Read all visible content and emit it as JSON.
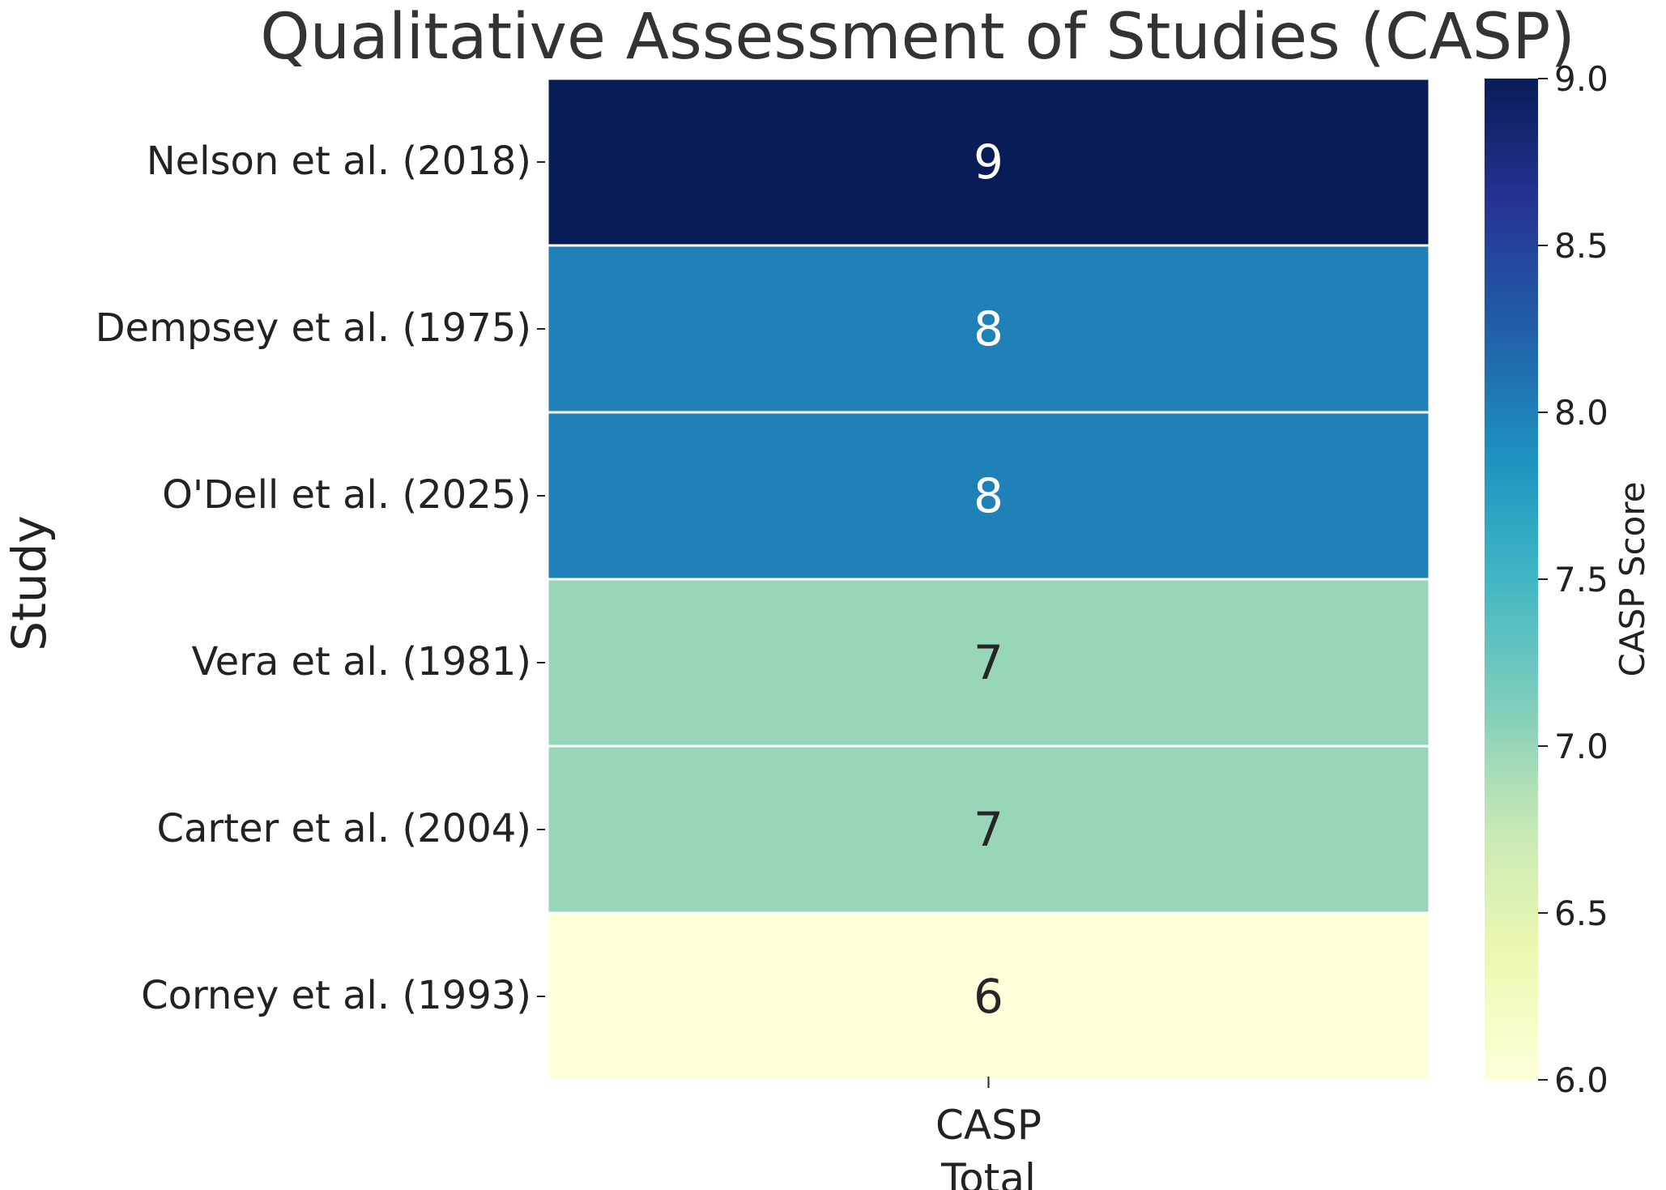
{
  "chart_data": {
    "type": "heatmap",
    "title": "Qualitative Assessment of Studies (CASP)",
    "ylabel": "Study",
    "xlabel": "",
    "rows": [
      "Nelson et al. (2018)",
      "Dempsey et al. (1975)",
      "O'Dell et al. (2025)",
      "Vera et al. (1981)",
      "Carter et al. (2004)",
      "Corney et al. (1993)"
    ],
    "columns": [
      "CASP\nTotal"
    ],
    "values": [
      [
        9
      ],
      [
        8
      ],
      [
        8
      ],
      [
        7
      ],
      [
        7
      ],
      [
        6
      ]
    ],
    "colorbar": {
      "label": "CASP Score",
      "range": [
        6.0,
        9.0
      ],
      "ticks": [
        "6.0",
        "6.5",
        "7.0",
        "7.5",
        "8.0",
        "8.5",
        "9.0"
      ],
      "colormap": "YlGnBu"
    },
    "cell_colors": {
      "9": "#081d58",
      "8": "#2081b9",
      "7": "#98d6b9",
      "6": "#ffffd9"
    },
    "annotation_colors": {
      "dark_cells": "#ffffff",
      "light_cells": "#262626"
    }
  }
}
